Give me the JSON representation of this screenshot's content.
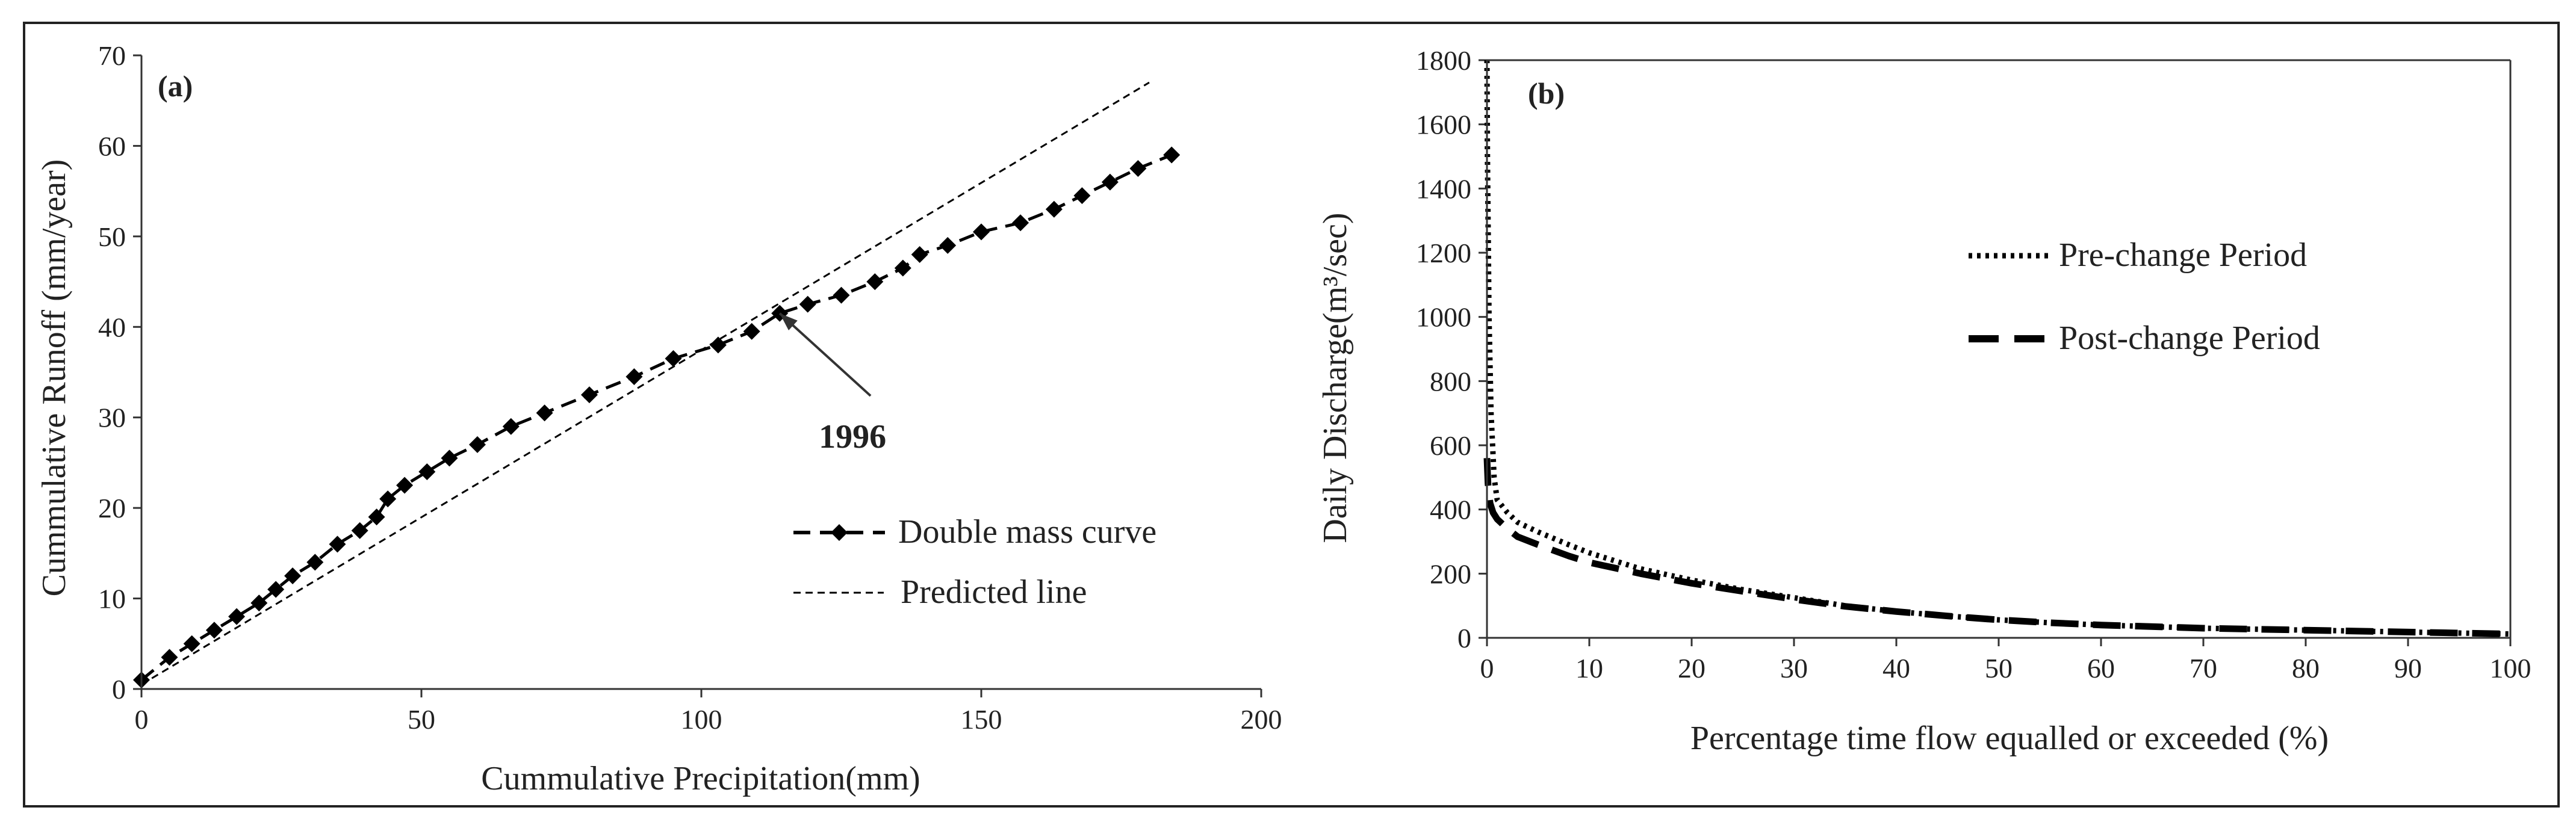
{
  "chart_data": [
    {
      "type": "line",
      "panel_label": "(a)",
      "xlabel": "Cummulative Precipitation(mm)",
      "ylabel": "Cummulative Runoff (mm/year)",
      "xlim": [
        0,
        200
      ],
      "ylim": [
        0,
        70
      ],
      "xticks": [
        "0",
        "50",
        "100",
        "150",
        "200"
      ],
      "yticks": [
        "0",
        "10",
        "20",
        "30",
        "40",
        "50",
        "60",
        "70"
      ],
      "grid": false,
      "legend_position": "bottom-right",
      "series": [
        {
          "name": "Double mass curve",
          "style": "dashed-diamond",
          "x": [
            0,
            5,
            9,
            13,
            17,
            21,
            24,
            27,
            31,
            35,
            39,
            42,
            44,
            47,
            51,
            55,
            60,
            66,
            72,
            80,
            88,
            95,
            103,
            109,
            114,
            119,
            125,
            131,
            136,
            139,
            144,
            150,
            157,
            163,
            168,
            173,
            178,
            184
          ],
          "y": [
            1,
            3.5,
            5,
            6.5,
            8,
            9.5,
            11,
            12.5,
            14,
            16,
            17.5,
            19,
            21,
            22.5,
            24,
            25.5,
            27,
            29,
            30.5,
            32.5,
            34.5,
            36.5,
            38,
            39.5,
            41.5,
            42.5,
            43.5,
            45,
            46.5,
            48,
            49,
            50.5,
            51.5,
            53,
            54.5,
            56,
            57.5,
            59
          ]
        },
        {
          "name": "Predicted line",
          "style": "short-dash",
          "x": [
            0,
            180
          ],
          "y": [
            0.5,
            67
          ]
        }
      ],
      "annotations": [
        {
          "text": "1996",
          "arrow_to": [
            114,
            41.5
          ],
          "text_at": [
            127,
            28
          ]
        }
      ]
    },
    {
      "type": "line",
      "panel_label": "(b)",
      "xlabel": "Percentage time flow equalled or exceeded (%)",
      "ylabel": "Daily Discharge(m³/sec)",
      "xlim": [
        0,
        100
      ],
      "ylim": [
        0,
        1800
      ],
      "xticks": [
        "0",
        "10",
        "20",
        "30",
        "40",
        "50",
        "60",
        "70",
        "80",
        "90",
        "100"
      ],
      "yticks": [
        "0",
        "200",
        "400",
        "600",
        "800",
        "1000",
        "1200",
        "1400",
        "1600",
        "1800"
      ],
      "grid": false,
      "legend_position": "top-right",
      "series": [
        {
          "name": "Pre-change Period",
          "style": "dotted",
          "x": [
            0,
            0.05,
            0.2,
            0.4,
            0.7,
            1,
            2,
            3,
            5,
            8,
            10,
            15,
            20,
            25,
            30,
            35,
            40,
            45,
            50,
            55,
            60,
            70,
            80,
            90,
            100
          ],
          "y": [
            1800,
            1500,
            1000,
            700,
            500,
            430,
            390,
            360,
            330,
            290,
            265,
            215,
            180,
            150,
            125,
            100,
            82,
            68,
            56,
            47,
            40,
            30,
            24,
            18,
            12
          ]
        },
        {
          "name": "Post-change Period",
          "style": "long-dash",
          "x": [
            0,
            0.1,
            0.3,
            0.6,
            1,
            2,
            3,
            5,
            8,
            10,
            15,
            20,
            25,
            30,
            35,
            40,
            45,
            50,
            55,
            60,
            70,
            80,
            90,
            100
          ],
          "y": [
            560,
            480,
            420,
            390,
            370,
            340,
            315,
            290,
            255,
            235,
            200,
            170,
            145,
            120,
            98,
            82,
            68,
            56,
            47,
            40,
            30,
            24,
            18,
            12
          ]
        }
      ]
    }
  ]
}
